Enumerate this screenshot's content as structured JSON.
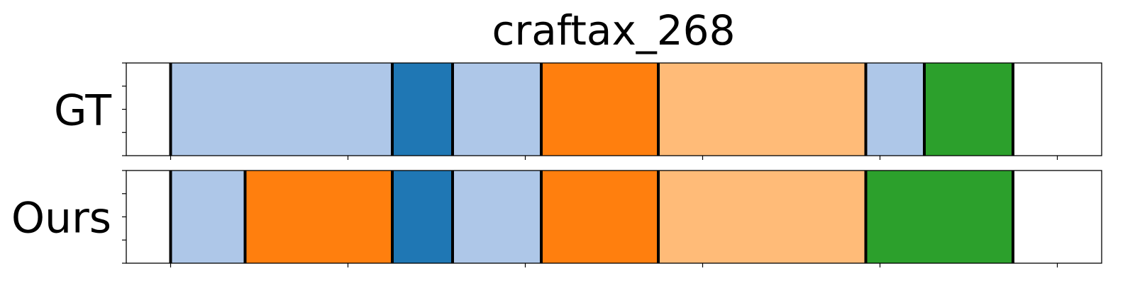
{
  "chart_data": {
    "type": "bar",
    "title": "craftax_268",
    "xlabel": "",
    "ylabel": "",
    "xlim": [
      0,
      550
    ],
    "grid": false,
    "rows": [
      {
        "label": "GT",
        "segments": [
          {
            "start": 25,
            "end": 150,
            "color": "#aec7e8"
          },
          {
            "start": 150,
            "end": 184,
            "color": "#1f77b4"
          },
          {
            "start": 184,
            "end": 234,
            "color": "#aec7e8"
          },
          {
            "start": 234,
            "end": 300,
            "color": "#ff7f0e"
          },
          {
            "start": 300,
            "end": 417,
            "color": "#ffbb78"
          },
          {
            "start": 417,
            "end": 450,
            "color": "#aec7e8"
          },
          {
            "start": 450,
            "end": 500,
            "color": "#2ca02c"
          }
        ]
      },
      {
        "label": "Ours",
        "segments": [
          {
            "start": 25,
            "end": 67,
            "color": "#aec7e8"
          },
          {
            "start": 67,
            "end": 150,
            "color": "#ff7f0e"
          },
          {
            "start": 150,
            "end": 184,
            "color": "#1f77b4"
          },
          {
            "start": 184,
            "end": 234,
            "color": "#aec7e8"
          },
          {
            "start": 234,
            "end": 300,
            "color": "#ff7f0e"
          },
          {
            "start": 300,
            "end": 417,
            "color": "#ffbb78"
          },
          {
            "start": 417,
            "end": 500,
            "color": "#2ca02c"
          }
        ]
      }
    ],
    "boundaries": [
      25,
      500
    ],
    "xticks": [
      25,
      125,
      225,
      325,
      425,
      525
    ],
    "yticks": [
      0,
      0.25,
      0.5,
      0.75,
      1
    ]
  }
}
